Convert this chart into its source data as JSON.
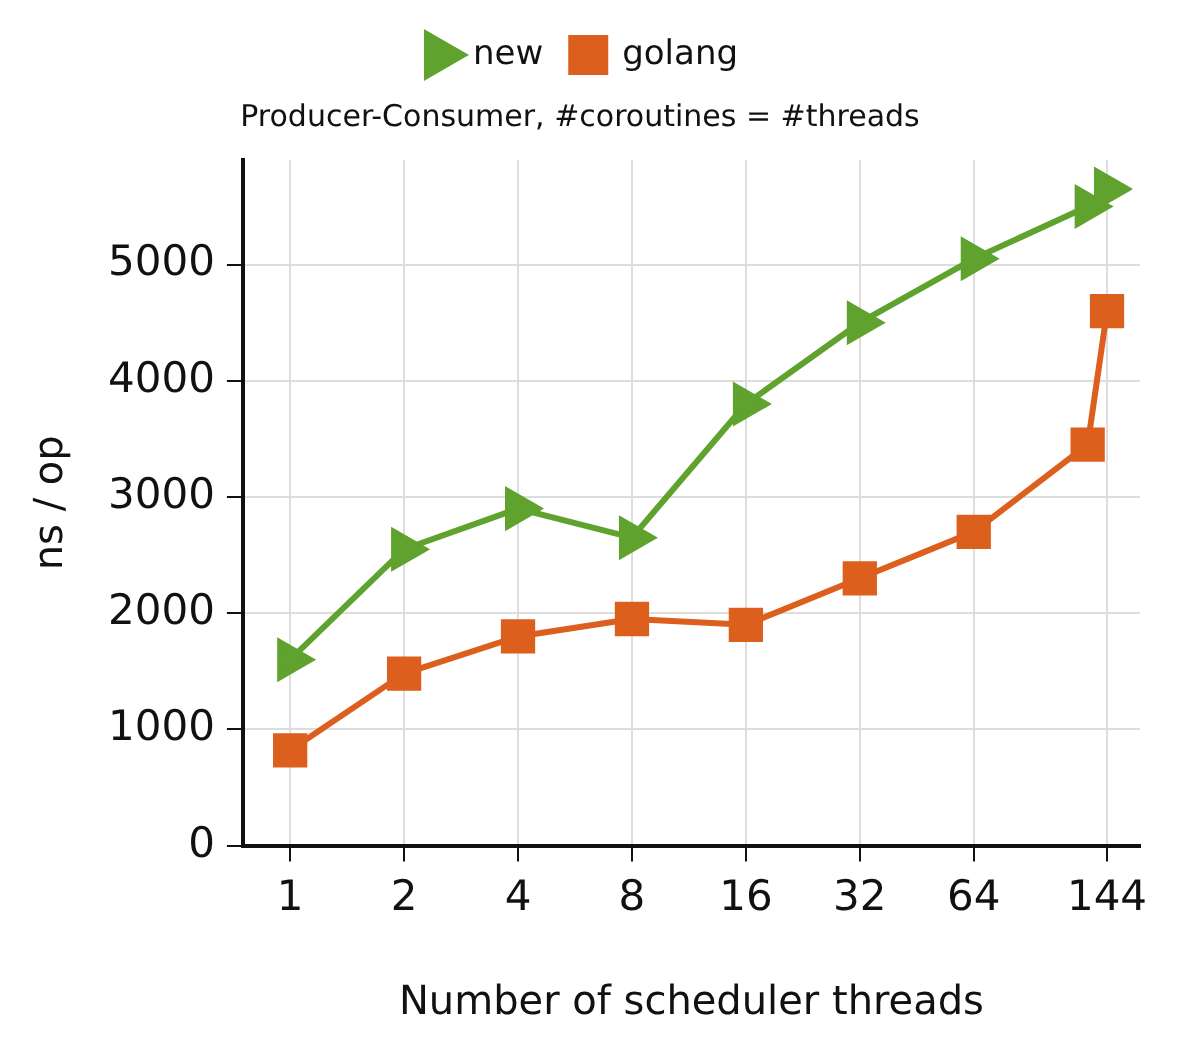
{
  "chart_data": {
    "type": "line",
    "title": "Producer-Consumer, #coroutines = #threads",
    "xlabel": "Number of scheduler threads",
    "ylabel": "ns / op",
    "x": [
      1,
      2,
      4,
      8,
      16,
      32,
      64,
      128,
      144
    ],
    "series": [
      {
        "name": "new",
        "color": "#5fa22d",
        "marker": "triangle",
        "values": [
          1600,
          2550,
          2900,
          2650,
          3800,
          4500,
          5050,
          5500,
          5650
        ]
      },
      {
        "name": "golang",
        "color": "#dd5f1e",
        "marker": "square",
        "values": [
          820,
          1480,
          1800,
          1950,
          1900,
          2300,
          2700,
          3450,
          4600
        ]
      }
    ],
    "log": "x",
    "xlim": [
      0.75,
      176
    ],
    "xticks": [
      1,
      2,
      4,
      8,
      16,
      32,
      64,
      144
    ],
    "ylim": [
      0,
      5900
    ],
    "yticks": [
      0,
      1000,
      2000,
      3000,
      4000,
      5000
    ],
    "grid": true,
    "legend": "top"
  }
}
